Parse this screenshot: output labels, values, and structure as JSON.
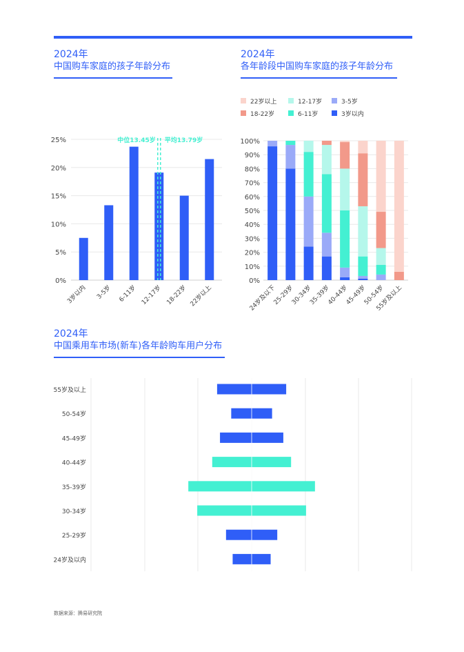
{
  "colors": {
    "accent": "#2f5ef7",
    "teal": "#44f0d2",
    "median_line": "#44f0d2",
    "grid": "#e8e8e8",
    "cat_3": "#2f5ef7",
    "cat_3_5": "#9aaaf8",
    "cat_6_11": "#44f0d2",
    "cat_12_17": "#b5f7eb",
    "cat_18_22": "#f2998a",
    "cat_22plus": "#fbd4cc"
  },
  "header1": {
    "year": "2024年",
    "title": "中国购车家庭的孩子年龄分布"
  },
  "header2": {
    "year": "2024年",
    "title": "各年龄段中国购车家庭的孩子年龄分布"
  },
  "header3": {
    "year": "2024年",
    "title": "中国乘用车市场(新车)各年龄购车用户分布"
  },
  "source": "数据来源：腾易研究院",
  "chart_data": [
    {
      "type": "bar",
      "categories": [
        "3岁以内",
        "3-5岁",
        "6-11岁",
        "12-17岁",
        "18-22岁",
        "22岁以上"
      ],
      "values": [
        7.5,
        13.3,
        23.7,
        19.1,
        15.0,
        21.5
      ],
      "ylim": [
        0,
        25
      ],
      "yticks": [
        "0%",
        "5%",
        "10%",
        "15%",
        "20%",
        "25%"
      ],
      "grid": true,
      "annotations": {
        "median": "中位13.45岁",
        "mean": "平均13.79岁",
        "median_value": 13.45,
        "mean_value": 13.79
      }
    },
    {
      "type": "bar",
      "stacked": true,
      "categories": [
        "24岁及以下",
        "25-29岁",
        "30-34岁",
        "35-39岁",
        "40-44岁",
        "45-49岁",
        "50-54岁",
        "55岁及以上"
      ],
      "ylim": [
        0,
        100
      ],
      "yticks": [
        "0%",
        "10%",
        "20%",
        "30%",
        "40%",
        "50%",
        "60%",
        "70%",
        "80%",
        "90%",
        "100%"
      ],
      "legend_position": "top",
      "legend": [
        "22岁以上",
        "12-17岁",
        "3-5岁",
        "18-22岁",
        "6-11岁",
        "3岁以内"
      ],
      "series": [
        {
          "name": "3岁以内",
          "values": [
            96,
            80,
            24,
            17,
            2,
            1,
            0,
            0
          ]
        },
        {
          "name": "3-5岁",
          "values": [
            4,
            17,
            36,
            17,
            7,
            2,
            4,
            0
          ]
        },
        {
          "name": "6-11岁",
          "values": [
            0,
            3,
            32,
            42,
            41,
            14,
            7,
            0
          ]
        },
        {
          "name": "12-17岁",
          "values": [
            0,
            0,
            8,
            21,
            30,
            36,
            12,
            0
          ]
        },
        {
          "name": "18-22岁",
          "values": [
            0,
            0,
            0,
            3,
            19,
            38,
            26,
            6
          ]
        },
        {
          "name": "22岁以上",
          "values": [
            0,
            0,
            0,
            0,
            1,
            9,
            51,
            94
          ]
        }
      ]
    },
    {
      "type": "bar",
      "orientation": "horizontal",
      "centered": true,
      "categories": [
        "55岁及以上",
        "50-54岁",
        "45-49岁",
        "40-44岁",
        "35-39岁",
        "30-34岁",
        "25-29岁",
        "24岁及以内"
      ],
      "values": [
        12.0,
        7.1,
        11.0,
        13.7,
        22.0,
        18.9,
        8.9,
        6.6
      ],
      "highlight": [
        "40-44岁",
        "35-39岁",
        "30-34岁"
      ],
      "grid": true
    }
  ]
}
